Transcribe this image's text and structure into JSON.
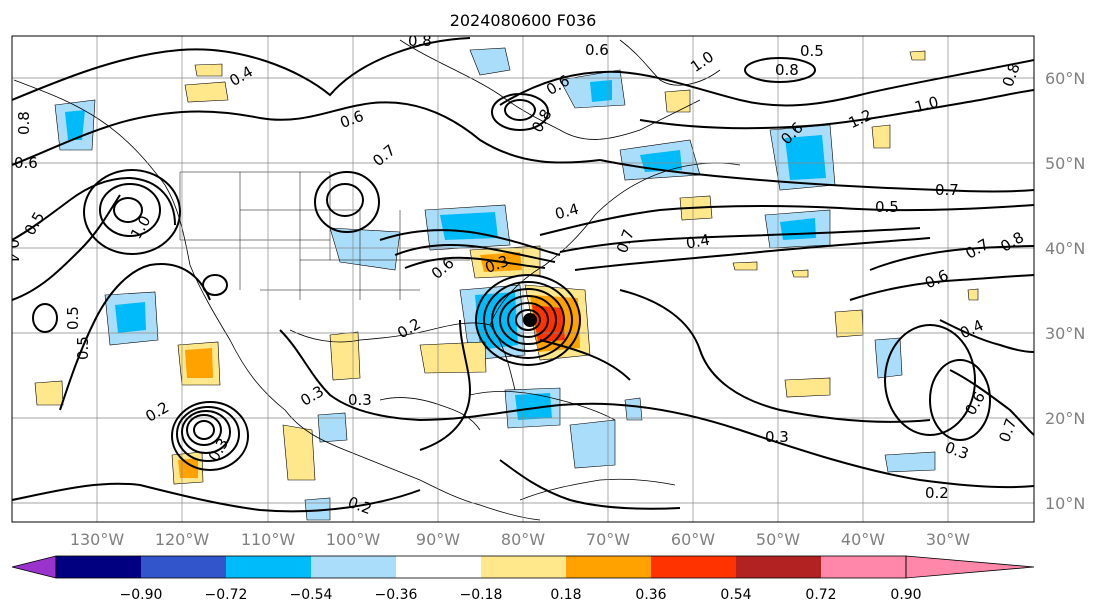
{
  "title": "2024080600 F036",
  "lat_labels": [
    "60°N",
    "50°N",
    "40°N",
    "30°N",
    "20°N",
    "10°N"
  ],
  "lon_labels": [
    "130°W",
    "120°W",
    "110°W",
    "100°W",
    "90°W",
    "80°W",
    "70°W",
    "60°W",
    "50°W",
    "40°W",
    "30°W"
  ],
  "colorbar": {
    "ticks": [
      "−0.90",
      "−0.72",
      "−0.54",
      "−0.36",
      "−0.18",
      "0.18",
      "0.36",
      "0.54",
      "0.72",
      "0.90"
    ],
    "colors": [
      "#9933cc",
      "#000080",
      "#3355cc",
      "#00bbf9",
      "#aaddf9",
      "#ffffff",
      "#ffe88c",
      "#ffa200",
      "#ff3300",
      "#b22222",
      "#ff88aa"
    ]
  },
  "contour_labels": [
    {
      "text": "0.8"
    },
    {
      "text": "0.6"
    },
    {
      "text": "1.0"
    },
    {
      "text": "0.5"
    },
    {
      "text": "0.8"
    },
    {
      "text": "0.4"
    },
    {
      "text": "0.6"
    },
    {
      "text": "0.8"
    },
    {
      "text": "1.2"
    },
    {
      "text": "1.0"
    },
    {
      "text": "0.8"
    },
    {
      "text": "0.6"
    },
    {
      "text": "0.6"
    },
    {
      "text": "0.7"
    },
    {
      "text": "0.6"
    },
    {
      "text": "0.8"
    },
    {
      "text": "0.7"
    },
    {
      "text": "0.5"
    },
    {
      "text": "0.5"
    },
    {
      "text": "1.0"
    },
    {
      "text": "0.4"
    },
    {
      "text": "0.7"
    },
    {
      "text": "0.4"
    },
    {
      "text": "0.8"
    },
    {
      "text": "0.7"
    },
    {
      "text": "0.6"
    },
    {
      "text": "0.5"
    },
    {
      "text": "0.5"
    },
    {
      "text": "0.4"
    },
    {
      "text": "0.2"
    },
    {
      "text": "0.3"
    },
    {
      "text": "0.3"
    },
    {
      "text": "0.3"
    },
    {
      "text": "0.2"
    },
    {
      "text": "0.2"
    },
    {
      "text": "0.3"
    },
    {
      "text": "0.3"
    },
    {
      "text": "0.6"
    },
    {
      "text": "0.7"
    },
    {
      "text": "0.3"
    },
    {
      "text": "0.6"
    },
    {
      "text": "0.4"
    },
    {
      "text": "0.2"
    }
  ]
}
